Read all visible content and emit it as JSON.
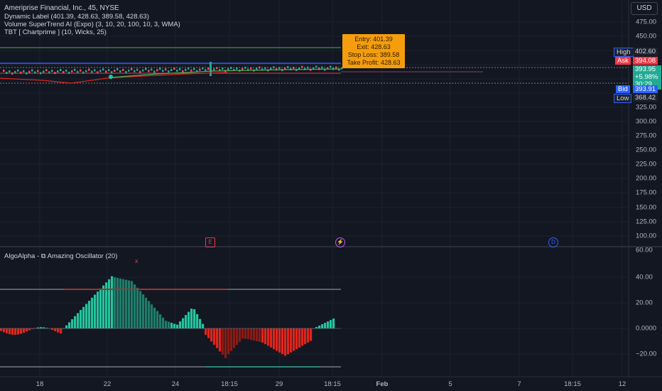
{
  "header": {
    "symbol_line": "Ameriprise Financial, Inc., 45, NYSE",
    "ind1": "Dynamic Label (401.39, 428.63, 389.58, 428.63)",
    "ind2": "Volume SuperTrend AI (Expo) (3, 10, 20, 100, 10, 3, WMA)",
    "ind3": "TBT [ Chartprime ] (10, Wicks,   25)",
    "currency": "USD"
  },
  "trade_label": {
    "entry": "Entry: 401.39",
    "exit": "Exit: 428.63",
    "stop": "Stop Loss: 389.58",
    "take": "Take Profit: 428.63"
  },
  "price_tags": {
    "high_label": "High",
    "high_value": "402.60",
    "ask_label": "Ask",
    "ask_value": "394.08",
    "last_value": "393.95",
    "change": "+5.98%",
    "countdown": "30:29",
    "bid_label": "Bid",
    "bid_value": "393.91",
    "low_label": "Low",
    "low_value": "368.42"
  },
  "price_axis": [
    "475.00",
    "450.00",
    "325.00",
    "300.00",
    "275.00",
    "250.00",
    "225.00",
    "200.00",
    "175.00",
    "150.00",
    "125.00",
    "100.00"
  ],
  "events": {
    "earnings": "E",
    "split": "⚡",
    "dividend": "D"
  },
  "oscillator": {
    "title": "AlgoAlpha - ⧉ Amazing Oscillator (20)",
    "marker": "x",
    "axis": [
      "60.00",
      "40.00",
      "20.00",
      "0.0000",
      "−20.00"
    ]
  },
  "time_axis": [
    "18",
    "22",
    "24",
    "18:15",
    "29",
    "18:15",
    "Feb",
    "5",
    "7",
    "18:15",
    "12"
  ],
  "colors": {
    "background": "#131722",
    "teal": "#22c5a0",
    "red": "#e0251b",
    "green_line": "#4caf50",
    "blue_line": "#2962ff",
    "orange": "#f59d0c"
  }
}
